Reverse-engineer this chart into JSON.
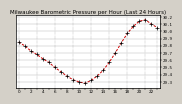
{
  "title": "Barometric Pressure per Hour (Last 24 Hours)",
  "title_left": "Milwaukee",
  "hours": [
    0,
    1,
    2,
    3,
    4,
    5,
    6,
    7,
    8,
    9,
    10,
    11,
    12,
    13,
    14,
    15,
    16,
    17,
    18,
    19,
    20,
    21,
    22,
    23
  ],
  "pressure": [
    29.85,
    29.8,
    29.73,
    29.68,
    29.62,
    29.57,
    29.5,
    29.44,
    29.38,
    29.33,
    29.3,
    29.28,
    29.32,
    29.38,
    29.46,
    29.57,
    29.7,
    29.84,
    29.97,
    30.07,
    30.14,
    30.16,
    30.1,
    30.05
  ],
  "ylim_min": 29.22,
  "ylim_max": 30.22,
  "line_color": "#cc0000",
  "marker_color": "#000000",
  "bg_color": "#d4d0c8",
  "plot_bg": "#ffffff",
  "grid_color": "#888888",
  "ytick_labels": [
    "29.3",
    "29.4",
    "29.5",
    "29.6",
    "29.7",
    "29.8",
    "29.9",
    "30.0",
    "30.1",
    "30.2"
  ],
  "yticks": [
    29.3,
    29.4,
    29.5,
    29.6,
    29.7,
    29.8,
    29.9,
    30.0,
    30.1,
    30.2
  ],
  "title_fontsize": 4.0,
  "tick_fontsize": 3.0,
  "vgrid_positions": [
    0,
    3,
    6,
    9,
    12,
    15,
    18,
    21,
    23
  ]
}
